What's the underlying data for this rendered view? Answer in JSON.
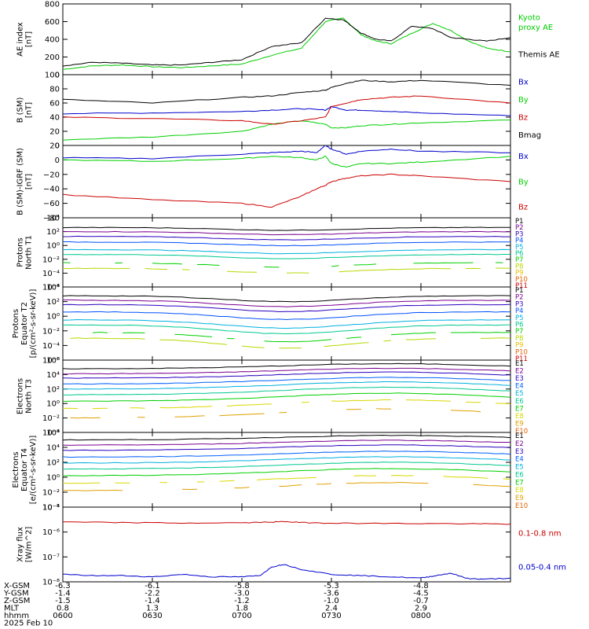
{
  "colors": {
    "black": "#000000",
    "green": "#00d000",
    "red": "#cc0000",
    "blue": "#0000cc",
    "kyoto": "#00cc00",
    "P": [
      "#000000",
      "#7a0090",
      "#2a00c0",
      "#0050ff",
      "#00b0e0",
      "#00c890",
      "#00d000",
      "#b8d800",
      "#e8c000",
      "#e06000",
      "#cc0000"
    ],
    "E": [
      "#000000",
      "#7a0090",
      "#2a00c0",
      "#0060ff",
      "#00b0e0",
      "#00c890",
      "#00d000",
      "#d8d800",
      "#e0a000",
      "#e06000",
      "#cc0000"
    ]
  },
  "chart_data": {
    "type": "line",
    "x_time_min": [
      0,
      150
    ],
    "x_tick_positions_min": [
      0,
      30,
      60,
      90,
      120,
      150
    ],
    "x_info_rows": [
      {
        "label": "X-GSM",
        "values": [
          "-6.3",
          "-6.1",
          "-5.8",
          "-5.3",
          "-4.8"
        ]
      },
      {
        "label": "Y-GSM",
        "values": [
          "-1.4",
          "-2.2",
          "-3.0",
          "-3.6",
          "-4.5"
        ]
      },
      {
        "label": "Z-GSM",
        "values": [
          "-1.5",
          "-1.4",
          "-1.2",
          "-1.0",
          "-0.7"
        ]
      },
      {
        "label": "MLT",
        "values": [
          "0.8",
          "1.3",
          "1.8",
          "2.4",
          "2.9"
        ]
      },
      {
        "label": "hhmm",
        "values": [
          "0600",
          "0630",
          "0700",
          "0730",
          "0800"
        ]
      }
    ],
    "date_label": "2025 Feb 10",
    "panels": [
      {
        "id": "ae",
        "ylabel": [
          "AE index",
          "[nT]"
        ],
        "yscale": "linear",
        "ylim": [
          0,
          800
        ],
        "yticks": [
          {
            "v": 0,
            "t": "0"
          },
          {
            "v": 200,
            "t": "200"
          },
          {
            "v": 400,
            "t": "400"
          },
          {
            "v": 600,
            "t": "600"
          },
          {
            "v": 800,
            "t": "800"
          }
        ],
        "series": [
          {
            "name": "Kyoto proxy AE",
            "color": "#00cc00",
            "x": [
              0,
              10,
              20,
              30,
              40,
              50,
              60,
              70,
              80,
              88,
              94,
              100,
              105,
              110,
              117,
              124,
              130,
              136,
              142,
              150
            ],
            "y": [
              60,
              100,
              110,
              90,
              80,
              100,
              120,
              220,
              300,
              600,
              640,
              450,
              380,
              350,
              470,
              580,
              500,
              380,
              300,
              260
            ]
          },
          {
            "name": "Themis AE",
            "color": "#000000",
            "x": [
              0,
              10,
              20,
              30,
              40,
              50,
              60,
              70,
              80,
              88,
              94,
              100,
              105,
              110,
              117,
              124,
              130,
              136,
              142,
              150
            ],
            "y": [
              100,
              140,
              130,
              110,
              110,
              140,
              170,
              320,
              360,
              640,
              620,
              470,
              400,
              380,
              550,
              520,
              420,
              400,
              380,
              420
            ]
          }
        ],
        "legend": [
          {
            "text": "Kyoto",
            "color": "#00cc00",
            "y_frac": 0.14
          },
          {
            "text": "proxy AE",
            "color": "#00cc00",
            "y_frac": 0.28
          },
          {
            "text": "Themis AE",
            "color": "#000000",
            "y_frac": 0.66
          }
        ]
      },
      {
        "id": "b",
        "ylabel": [
          "B (SM)",
          "[nT]"
        ],
        "yscale": "linear",
        "ylim": [
          0,
          100
        ],
        "yticks": [
          {
            "v": 0,
            "t": "0"
          },
          {
            "v": 20,
            "t": "20"
          },
          {
            "v": 40,
            "t": "40"
          },
          {
            "v": 60,
            "t": "60"
          },
          {
            "v": 80,
            "t": "80"
          },
          {
            "v": 100,
            "t": "100"
          }
        ],
        "series": [
          {
            "name": "Bx",
            "color": "#0000cc",
            "x": [
              0,
              30,
              60,
              70,
              80,
              88,
              90,
              95,
              100,
              110,
              120,
              150
            ],
            "y": [
              45,
              46,
              48,
              50,
              52,
              50,
              55,
              50,
              50,
              48,
              46,
              42
            ]
          },
          {
            "name": "By",
            "color": "#00d000",
            "x": [
              0,
              30,
              60,
              70,
              80,
              88,
              90,
              95,
              100,
              110,
              120,
              150
            ],
            "y": [
              8,
              12,
              20,
              30,
              35,
              30,
              25,
              25,
              28,
              30,
              32,
              36
            ]
          },
          {
            "name": "Bz",
            "color": "#cc0000",
            "x": [
              0,
              30,
              60,
              70,
              80,
              88,
              90,
              95,
              100,
              110,
              120,
              150
            ],
            "y": [
              40,
              38,
              35,
              30,
              35,
              40,
              55,
              60,
              65,
              68,
              70,
              60
            ]
          },
          {
            "name": "Bmag",
            "color": "#000000",
            "x": [
              0,
              30,
              60,
              70,
              80,
              88,
              90,
              95,
              100,
              110,
              120,
              150
            ],
            "y": [
              65,
              60,
              68,
              70,
              75,
              78,
              82,
              88,
              92,
              90,
              92,
              85
            ]
          }
        ],
        "legend": [
          {
            "text": "Bx",
            "color": "#0000cc",
            "y_frac": 0.05
          },
          {
            "text": "By",
            "color": "#00d000",
            "y_frac": 0.3
          },
          {
            "text": "Bz",
            "color": "#cc0000",
            "y_frac": 0.55
          },
          {
            "text": "Bmag",
            "color": "#000000",
            "y_frac": 0.8
          }
        ]
      },
      {
        "id": "dbigrf",
        "ylabel": [
          "B (SM)-IGRF (SM)",
          "[nT]"
        ],
        "yscale": "linear",
        "ylim": [
          -80,
          20
        ],
        "yticks": [
          {
            "v": -80,
            "t": "−80"
          },
          {
            "v": -60,
            "t": "−60"
          },
          {
            "v": -40,
            "t": "−40"
          },
          {
            "v": -20,
            "t": "−20"
          },
          {
            "v": 0,
            "t": "0"
          },
          {
            "v": 20,
            "t": "20"
          }
        ],
        "series": [
          {
            "name": "Bx",
            "color": "#0000cc",
            "x": [
              0,
              30,
              60,
              70,
              80,
              85,
              88,
              90,
              95,
              100,
              110,
              120,
              150
            ],
            "y": [
              3,
              2,
              8,
              10,
              12,
              10,
              20,
              15,
              8,
              12,
              15,
              12,
              10
            ]
          },
          {
            "name": "By",
            "color": "#00d000",
            "x": [
              0,
              30,
              60,
              70,
              80,
              85,
              88,
              90,
              95,
              100,
              110,
              120,
              150
            ],
            "y": [
              0,
              -2,
              2,
              5,
              3,
              0,
              5,
              -5,
              -10,
              -5,
              -5,
              -3,
              5
            ]
          },
          {
            "name": "Bz",
            "color": "#cc0000",
            "x": [
              0,
              30,
              60,
              70,
              80,
              85,
              88,
              90,
              95,
              100,
              110,
              120,
              150
            ],
            "y": [
              -48,
              -55,
              -60,
              -65,
              -50,
              -40,
              -35,
              -30,
              -25,
              -22,
              -20,
              -22,
              -30
            ]
          }
        ],
        "legend": [
          {
            "text": "Bx",
            "color": "#0000cc",
            "y_frac": 0.1
          },
          {
            "text": "By",
            "color": "#00d000",
            "y_frac": 0.45
          },
          {
            "text": "Bz",
            "color": "#cc0000",
            "y_frac": 0.8
          }
        ]
      },
      {
        "id": "prot1",
        "ylabel": [
          "Protons",
          "North T1"
        ],
        "yscale": "log",
        "ylim": [
          -6,
          4
        ],
        "yticks": [
          {
            "v": -6,
            "t": "10⁻⁶"
          },
          {
            "v": -4,
            "t": "10⁻⁴"
          },
          {
            "v": -2,
            "t": "10⁻²"
          },
          {
            "v": 0,
            "t": "10⁰"
          },
          {
            "v": 2,
            "t": "10²"
          },
          {
            "v": 4,
            "t": "10⁴"
          }
        ],
        "channels": [
          "P1",
          "P2",
          "P3",
          "P4",
          "P5",
          "P6",
          "P7",
          "P8",
          "P9",
          "P10",
          "P11"
        ],
        "levels": [
          2.6,
          2.0,
          1.3,
          0.5,
          -0.6,
          -1.3,
          -2.5,
          -3.3
        ],
        "dip": {
          "center": 75,
          "width": 30,
          "depth": 0.4
        },
        "legend_small": true
      },
      {
        "id": "prot2",
        "ylabel": [
          "Protons",
          "Equator T2",
          "[p/(cm²-s-sr-keV)]"
        ],
        "yscale": "log",
        "ylim": [
          -6,
          4
        ],
        "yticks": [
          {
            "v": -6,
            "t": "10⁻⁶"
          },
          {
            "v": -4,
            "t": "10⁻⁴"
          },
          {
            "v": -2,
            "t": "10⁻²"
          },
          {
            "v": 0,
            "t": "10⁰"
          },
          {
            "v": 2,
            "t": "10²"
          },
          {
            "v": 4,
            "t": "10⁴"
          }
        ],
        "channels": [
          "P1",
          "P2",
          "P3",
          "P4",
          "P5",
          "P6",
          "P7",
          "P8",
          "P9",
          "P10",
          "P11"
        ],
        "levels": [
          2.8,
          2.2,
          1.6,
          0.6,
          -0.5,
          -1.2,
          -2.2,
          -3.0
        ],
        "dip": {
          "center": 75,
          "width": 30,
          "depth": 0.8
        },
        "legend_small": true
      },
      {
        "id": "elec3",
        "ylabel": [
          "Electrons",
          "North T3"
        ],
        "yscale": "log",
        "ylim": [
          -4,
          6
        ],
        "yticks": [
          {
            "v": -4,
            "t": "10⁻⁴"
          },
          {
            "v": -2,
            "t": "10⁻²"
          },
          {
            "v": 0,
            "t": "10⁰"
          },
          {
            "v": 2,
            "t": "10²"
          },
          {
            "v": 4,
            "t": "10⁴"
          },
          {
            "v": 6,
            "t": "10⁶"
          }
        ],
        "channels": [
          "E1",
          "E2",
          "E3",
          "E4",
          "E5",
          "E6",
          "E7",
          "E8",
          "E9",
          "E10"
        ],
        "levels": [
          4.8,
          4.1,
          3.5,
          2.7,
          2.0,
          1.2,
          0.3,
          -0.7,
          -2.0
        ],
        "dip": {
          "center": 110,
          "width": 50,
          "depth": -0.7
        },
        "legend_small": true
      },
      {
        "id": "elec4",
        "ylabel": [
          "Electrons",
          "Equator T4",
          "[e/(cm²-s-sr-keV)]"
        ],
        "yscale": "log",
        "ylim": [
          -4,
          6
        ],
        "yticks": [
          {
            "v": -4,
            "t": "10⁻⁴"
          },
          {
            "v": -2,
            "t": "10⁻²"
          },
          {
            "v": 0,
            "t": "10⁰"
          },
          {
            "v": 2,
            "t": "10²"
          },
          {
            "v": 4,
            "t": "10⁴"
          },
          {
            "v": 6,
            "t": "10⁶"
          }
        ],
        "channels": [
          "E1",
          "E2",
          "E3",
          "E4",
          "E5",
          "E6",
          "E7",
          "E8",
          "E9",
          "E10"
        ],
        "levels": [
          5.0,
          4.3,
          3.6,
          2.7,
          1.9,
          1.1,
          0.2,
          -0.8,
          -1.8
        ],
        "dip": {
          "center": 110,
          "width": 50,
          "depth": -0.6
        },
        "legend_small": true
      },
      {
        "id": "xray",
        "ylabel": [
          "Xray flux",
          "[W/m^2]"
        ],
        "yscale": "log",
        "ylim": [
          -8,
          -5
        ],
        "yticks": [
          {
            "v": -8,
            "t": "10⁻⁸"
          },
          {
            "v": -7,
            "t": "10⁻⁷"
          },
          {
            "v": -6,
            "t": "10⁻⁶"
          },
          {
            "v": -5,
            "t": "10⁻⁵"
          }
        ],
        "series": [
          {
            "name": "0.1-0.8 nm",
            "color": "#cc0000",
            "x": [
              0,
              20,
              40,
              60,
              70,
              75,
              80,
              90,
              100,
              120,
              140,
              150
            ],
            "y": [
              -5.6,
              -5.62,
              -5.64,
              -5.63,
              -5.6,
              -5.58,
              -5.62,
              -5.64,
              -5.65,
              -5.66,
              -5.67,
              -5.68
            ]
          },
          {
            "name": "0.05-0.4 nm",
            "color": "#0000cc",
            "x": [
              0,
              10,
              20,
              30,
              40,
              50,
              60,
              66,
              70,
              74,
              80,
              90,
              100,
              110,
              120,
              125,
              130,
              135,
              140,
              150
            ],
            "y": [
              -7.7,
              -7.75,
              -7.75,
              -7.8,
              -7.7,
              -7.8,
              -7.8,
              -7.75,
              -7.4,
              -7.3,
              -7.5,
              -7.7,
              -7.75,
              -7.8,
              -7.85,
              -7.75,
              -7.65,
              -7.85,
              -7.9,
              -7.85
            ]
          }
        ],
        "legend": [
          {
            "text": "0.1-0.8 nm",
            "color": "#cc0000",
            "y_frac": 0.3
          },
          {
            "text": "0.05-0.4 nm",
            "color": "#0000cc",
            "y_frac": 0.75
          }
        ]
      }
    ]
  }
}
